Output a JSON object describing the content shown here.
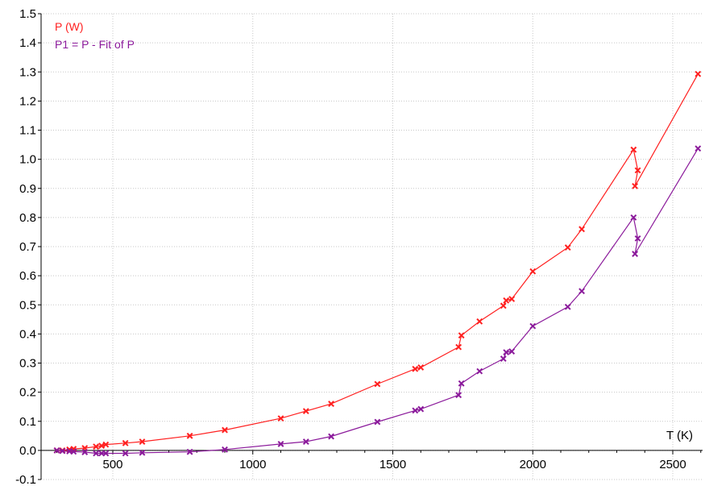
{
  "chart_data": {
    "type": "line",
    "xlabel": "T (K)",
    "ylabel": "",
    "xlim": [
      300,
      2600
    ],
    "ylim": [
      -0.1,
      1.5
    ],
    "xticks": [
      500,
      1000,
      1500,
      2000,
      2500
    ],
    "yticks": [
      -0.1,
      0.0,
      0.1,
      0.2,
      0.3,
      0.4,
      0.5,
      0.6,
      0.7,
      0.8,
      0.9,
      1.0,
      1.1,
      1.2,
      1.3,
      1.4,
      1.5
    ],
    "ytick_labels": [
      "-0.1",
      "0.0",
      "0.1",
      "0.2",
      "0.3",
      "0.4",
      "0.5",
      "0.6",
      "0.7",
      "0.8",
      "0.9",
      "1.0",
      "1.1",
      "1.2",
      "1.3",
      "1.4",
      "1.5"
    ],
    "grid": true,
    "legend_position": "top-left",
    "series": [
      {
        "name": "P (W)",
        "color": "#ff2020",
        "marker": "x",
        "points": [
          [
            300,
            0.0
          ],
          [
            320,
            0.0
          ],
          [
            345,
            0.003
          ],
          [
            360,
            0.005
          ],
          [
            400,
            0.008
          ],
          [
            440,
            0.013
          ],
          [
            460,
            0.016
          ],
          [
            475,
            0.02
          ],
          [
            545,
            0.025
          ],
          [
            605,
            0.03
          ],
          [
            775,
            0.05
          ],
          [
            900,
            0.07
          ],
          [
            1100,
            0.11
          ],
          [
            1190,
            0.135
          ],
          [
            1280,
            0.16
          ],
          [
            1445,
            0.228
          ],
          [
            1580,
            0.28
          ],
          [
            1600,
            0.285
          ],
          [
            1735,
            0.355
          ],
          [
            1745,
            0.395
          ],
          [
            1810,
            0.443
          ],
          [
            1895,
            0.497
          ],
          [
            1905,
            0.515
          ],
          [
            1925,
            0.52
          ],
          [
            2000,
            0.615
          ],
          [
            2125,
            0.697
          ],
          [
            2175,
            0.76
          ],
          [
            2360,
            1.033
          ],
          [
            2375,
            0.962
          ],
          [
            2365,
            0.908
          ],
          [
            2590,
            1.293
          ]
        ]
      },
      {
        "name": "P1 = P - Fit of P",
        "color": "#8b1a9b",
        "marker": "x",
        "points": [
          [
            300,
            0.0
          ],
          [
            320,
            -0.002
          ],
          [
            345,
            -0.003
          ],
          [
            360,
            -0.004
          ],
          [
            400,
            -0.006
          ],
          [
            440,
            -0.01
          ],
          [
            460,
            -0.01
          ],
          [
            475,
            -0.01
          ],
          [
            545,
            -0.01
          ],
          [
            605,
            -0.008
          ],
          [
            775,
            -0.005
          ],
          [
            900,
            0.003
          ],
          [
            1100,
            0.022
          ],
          [
            1190,
            0.03
          ],
          [
            1280,
            0.048
          ],
          [
            1445,
            0.098
          ],
          [
            1580,
            0.137
          ],
          [
            1600,
            0.142
          ],
          [
            1735,
            0.19
          ],
          [
            1745,
            0.23
          ],
          [
            1810,
            0.272
          ],
          [
            1895,
            0.315
          ],
          [
            1905,
            0.337
          ],
          [
            1925,
            0.34
          ],
          [
            2000,
            0.427
          ],
          [
            2125,
            0.493
          ],
          [
            2175,
            0.547
          ],
          [
            2360,
            0.8
          ],
          [
            2375,
            0.728
          ],
          [
            2365,
            0.675
          ],
          [
            2590,
            1.037
          ]
        ]
      }
    ]
  }
}
